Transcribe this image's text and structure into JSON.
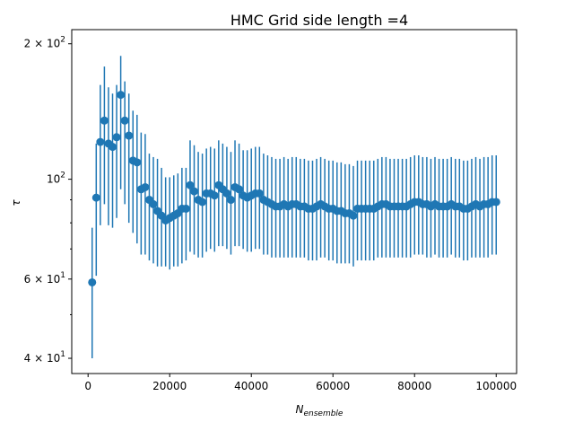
{
  "chart_data": {
    "type": "scatter",
    "title": "HMC Grid side length =4",
    "xlabel_main": "N",
    "xlabel_sub": "ensemble",
    "ylabel": "τ",
    "yscale": "log",
    "xlim": [
      -4000,
      105000
    ],
    "ylim": [
      37,
      215
    ],
    "x_ticks": [
      0,
      20000,
      40000,
      60000,
      80000,
      100000
    ],
    "x_tick_labels": [
      "0",
      "20000",
      "40000",
      "60000",
      "80000",
      "100000"
    ],
    "y_major_ticks": [
      {
        "value": 40,
        "mantissa": "4",
        "base": "10",
        "exp": "1"
      },
      {
        "value": 60,
        "mantissa": "6",
        "base": "10",
        "exp": "1"
      },
      {
        "value": 100,
        "mantissa": "",
        "base": "10",
        "exp": "2"
      },
      {
        "value": 200,
        "mantissa": "2",
        "base": "10",
        "exp": "2"
      }
    ],
    "y_minor_ticks": [
      50,
      70,
      80,
      90
    ],
    "color": "#1f77b4",
    "grid": false,
    "x": [
      1000,
      2000,
      3000,
      4000,
      5000,
      6000,
      7000,
      8000,
      9000,
      10000,
      11000,
      12000,
      13000,
      14000,
      15000,
      16000,
      17000,
      18000,
      19000,
      20000,
      21000,
      22000,
      23000,
      24000,
      25000,
      26000,
      27000,
      28000,
      29000,
      30000,
      31000,
      32000,
      33000,
      34000,
      35000,
      36000,
      37000,
      38000,
      39000,
      40000,
      41000,
      42000,
      43000,
      44000,
      45000,
      46000,
      47000,
      48000,
      49000,
      50000,
      51000,
      52000,
      53000,
      54000,
      55000,
      56000,
      57000,
      58000,
      59000,
      60000,
      61000,
      62000,
      63000,
      64000,
      65000,
      66000,
      67000,
      68000,
      69000,
      70000,
      71000,
      72000,
      73000,
      74000,
      75000,
      76000,
      77000,
      78000,
      79000,
      80000,
      81000,
      82000,
      83000,
      84000,
      85000,
      86000,
      87000,
      88000,
      89000,
      90000,
      91000,
      92000,
      93000,
      94000,
      95000,
      96000,
      97000,
      98000,
      99000,
      100000
    ],
    "y": [
      59,
      91,
      121,
      135,
      120,
      118,
      124,
      154,
      135,
      125,
      110,
      109,
      95,
      96,
      90,
      88,
      85,
      83,
      81,
      82,
      83,
      84,
      86,
      86,
      97,
      94,
      90,
      89,
      93,
      93,
      92,
      97,
      95,
      93,
      90,
      96,
      95,
      92,
      91,
      92,
      93,
      93,
      90,
      89,
      88,
      87,
      87,
      88,
      87,
      88,
      88,
      87,
      87,
      86,
      86,
      87,
      88,
      87,
      86,
      86,
      85,
      85,
      84,
      84,
      83,
      86,
      86,
      86,
      86,
      86,
      87,
      88,
      88,
      87,
      87,
      87,
      87,
      87,
      88,
      89,
      89,
      88,
      88,
      87,
      88,
      87,
      87,
      87,
      88,
      87,
      87,
      86,
      86,
      87,
      88,
      87,
      88,
      88,
      89,
      89
    ],
    "yerr_low": [
      40,
      61,
      79,
      88,
      79,
      78,
      82,
      95,
      88,
      80,
      76,
      72,
      68,
      68,
      66,
      65,
      64,
      64,
      64,
      63,
      64,
      64,
      65,
      66,
      69,
      68,
      67,
      67,
      69,
      70,
      69,
      71,
      71,
      70,
      68,
      71,
      71,
      70,
      69,
      69,
      70,
      70,
      68,
      68,
      67,
      67,
      67,
      67,
      67,
      67,
      67,
      67,
      67,
      66,
      66,
      66,
      67,
      67,
      66,
      66,
      65,
      65,
      65,
      65,
      64,
      66,
      66,
      66,
      66,
      66,
      67,
      67,
      67,
      67,
      67,
      67,
      67,
      67,
      67,
      68,
      68,
      68,
      67,
      67,
      68,
      67,
      67,
      67,
      68,
      67,
      67,
      66,
      66,
      67,
      67,
      67,
      67,
      67,
      68,
      68
    ],
    "yerr_high": [
      78,
      120,
      162,
      178,
      160,
      155,
      162,
      188,
      165,
      155,
      142,
      139,
      127,
      126,
      114,
      112,
      111,
      106,
      101,
      101,
      102,
      103,
      106,
      106,
      122,
      119,
      115,
      114,
      117,
      118,
      117,
      122,
      120,
      118,
      115,
      122,
      120,
      116,
      116,
      117,
      118,
      118,
      114,
      113,
      112,
      111,
      111,
      112,
      111,
      112,
      112,
      111,
      111,
      110,
      110,
      111,
      112,
      111,
      110,
      110,
      109,
      109,
      108,
      108,
      107,
      110,
      110,
      110,
      110,
      110,
      111,
      112,
      112,
      111,
      111,
      111,
      111,
      111,
      112,
      113,
      113,
      112,
      112,
      111,
      112,
      111,
      111,
      111,
      112,
      111,
      111,
      110,
      110,
      111,
      112,
      111,
      112,
      112,
      113,
      113
    ]
  }
}
